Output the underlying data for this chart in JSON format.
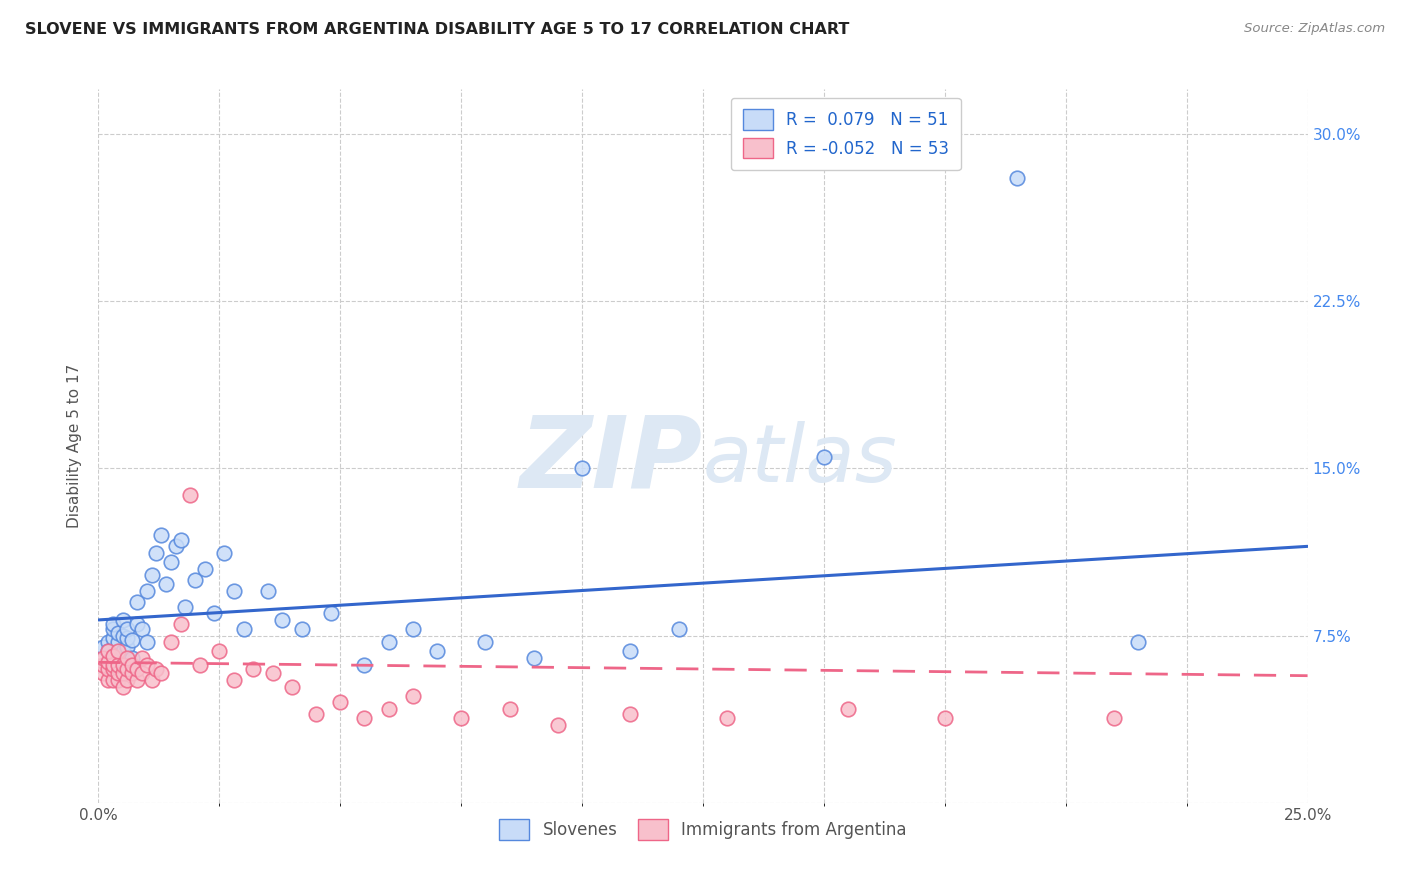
{
  "title": "SLOVENE VS IMMIGRANTS FROM ARGENTINA DISABILITY AGE 5 TO 17 CORRELATION CHART",
  "source": "Source: ZipAtlas.com",
  "ylabel": "Disability Age 5 to 17",
  "xlim": [
    0.0,
    0.25
  ],
  "ylim": [
    0.0,
    0.32
  ],
  "R_slovene": 0.079,
  "N_slovene": 51,
  "R_argentina": -0.052,
  "N_argentina": 53,
  "color_slovene_face": "#c8dcf8",
  "color_argentina_face": "#f8c0cc",
  "color_slovene_edge": "#5588dd",
  "color_argentina_edge": "#ee6688",
  "line_color_slovene": "#3366cc",
  "line_color_argentina": "#ee6688",
  "background_color": "#ffffff",
  "watermark_zip_color": "#dde8f4",
  "watermark_atlas_color": "#dde8f4",
  "slovene_x": [
    0.001,
    0.002,
    0.002,
    0.003,
    0.003,
    0.003,
    0.004,
    0.004,
    0.005,
    0.005,
    0.005,
    0.006,
    0.006,
    0.006,
    0.007,
    0.007,
    0.008,
    0.008,
    0.009,
    0.01,
    0.01,
    0.011,
    0.012,
    0.013,
    0.014,
    0.015,
    0.016,
    0.017,
    0.018,
    0.02,
    0.022,
    0.024,
    0.026,
    0.028,
    0.03,
    0.035,
    0.038,
    0.042,
    0.048,
    0.055,
    0.06,
    0.065,
    0.07,
    0.08,
    0.09,
    0.1,
    0.11,
    0.12,
    0.15,
    0.19,
    0.215
  ],
  "slovene_y": [
    0.07,
    0.072,
    0.068,
    0.074,
    0.078,
    0.08,
    0.072,
    0.076,
    0.068,
    0.075,
    0.082,
    0.07,
    0.074,
    0.078,
    0.065,
    0.073,
    0.08,
    0.09,
    0.078,
    0.072,
    0.095,
    0.102,
    0.112,
    0.12,
    0.098,
    0.108,
    0.115,
    0.118,
    0.088,
    0.1,
    0.105,
    0.085,
    0.112,
    0.095,
    0.078,
    0.095,
    0.082,
    0.078,
    0.085,
    0.062,
    0.072,
    0.078,
    0.068,
    0.072,
    0.065,
    0.15,
    0.068,
    0.078,
    0.155,
    0.28,
    0.072
  ],
  "argentina_x": [
    0.001,
    0.001,
    0.001,
    0.002,
    0.002,
    0.002,
    0.002,
    0.003,
    0.003,
    0.003,
    0.003,
    0.004,
    0.004,
    0.004,
    0.004,
    0.005,
    0.005,
    0.005,
    0.006,
    0.006,
    0.006,
    0.007,
    0.007,
    0.008,
    0.008,
    0.009,
    0.009,
    0.01,
    0.011,
    0.012,
    0.013,
    0.015,
    0.017,
    0.019,
    0.021,
    0.025,
    0.028,
    0.032,
    0.036,
    0.04,
    0.045,
    0.05,
    0.055,
    0.06,
    0.065,
    0.075,
    0.085,
    0.095,
    0.11,
    0.13,
    0.155,
    0.175,
    0.21
  ],
  "argentina_y": [
    0.058,
    0.062,
    0.065,
    0.055,
    0.06,
    0.063,
    0.068,
    0.055,
    0.06,
    0.062,
    0.066,
    0.055,
    0.058,
    0.062,
    0.068,
    0.052,
    0.058,
    0.062,
    0.055,
    0.06,
    0.065,
    0.058,
    0.062,
    0.055,
    0.06,
    0.058,
    0.065,
    0.062,
    0.055,
    0.06,
    0.058,
    0.072,
    0.08,
    0.138,
    0.062,
    0.068,
    0.055,
    0.06,
    0.058,
    0.052,
    0.04,
    0.045,
    0.038,
    0.042,
    0.048,
    0.038,
    0.042,
    0.035,
    0.04,
    0.038,
    0.042,
    0.038,
    0.038
  ]
}
